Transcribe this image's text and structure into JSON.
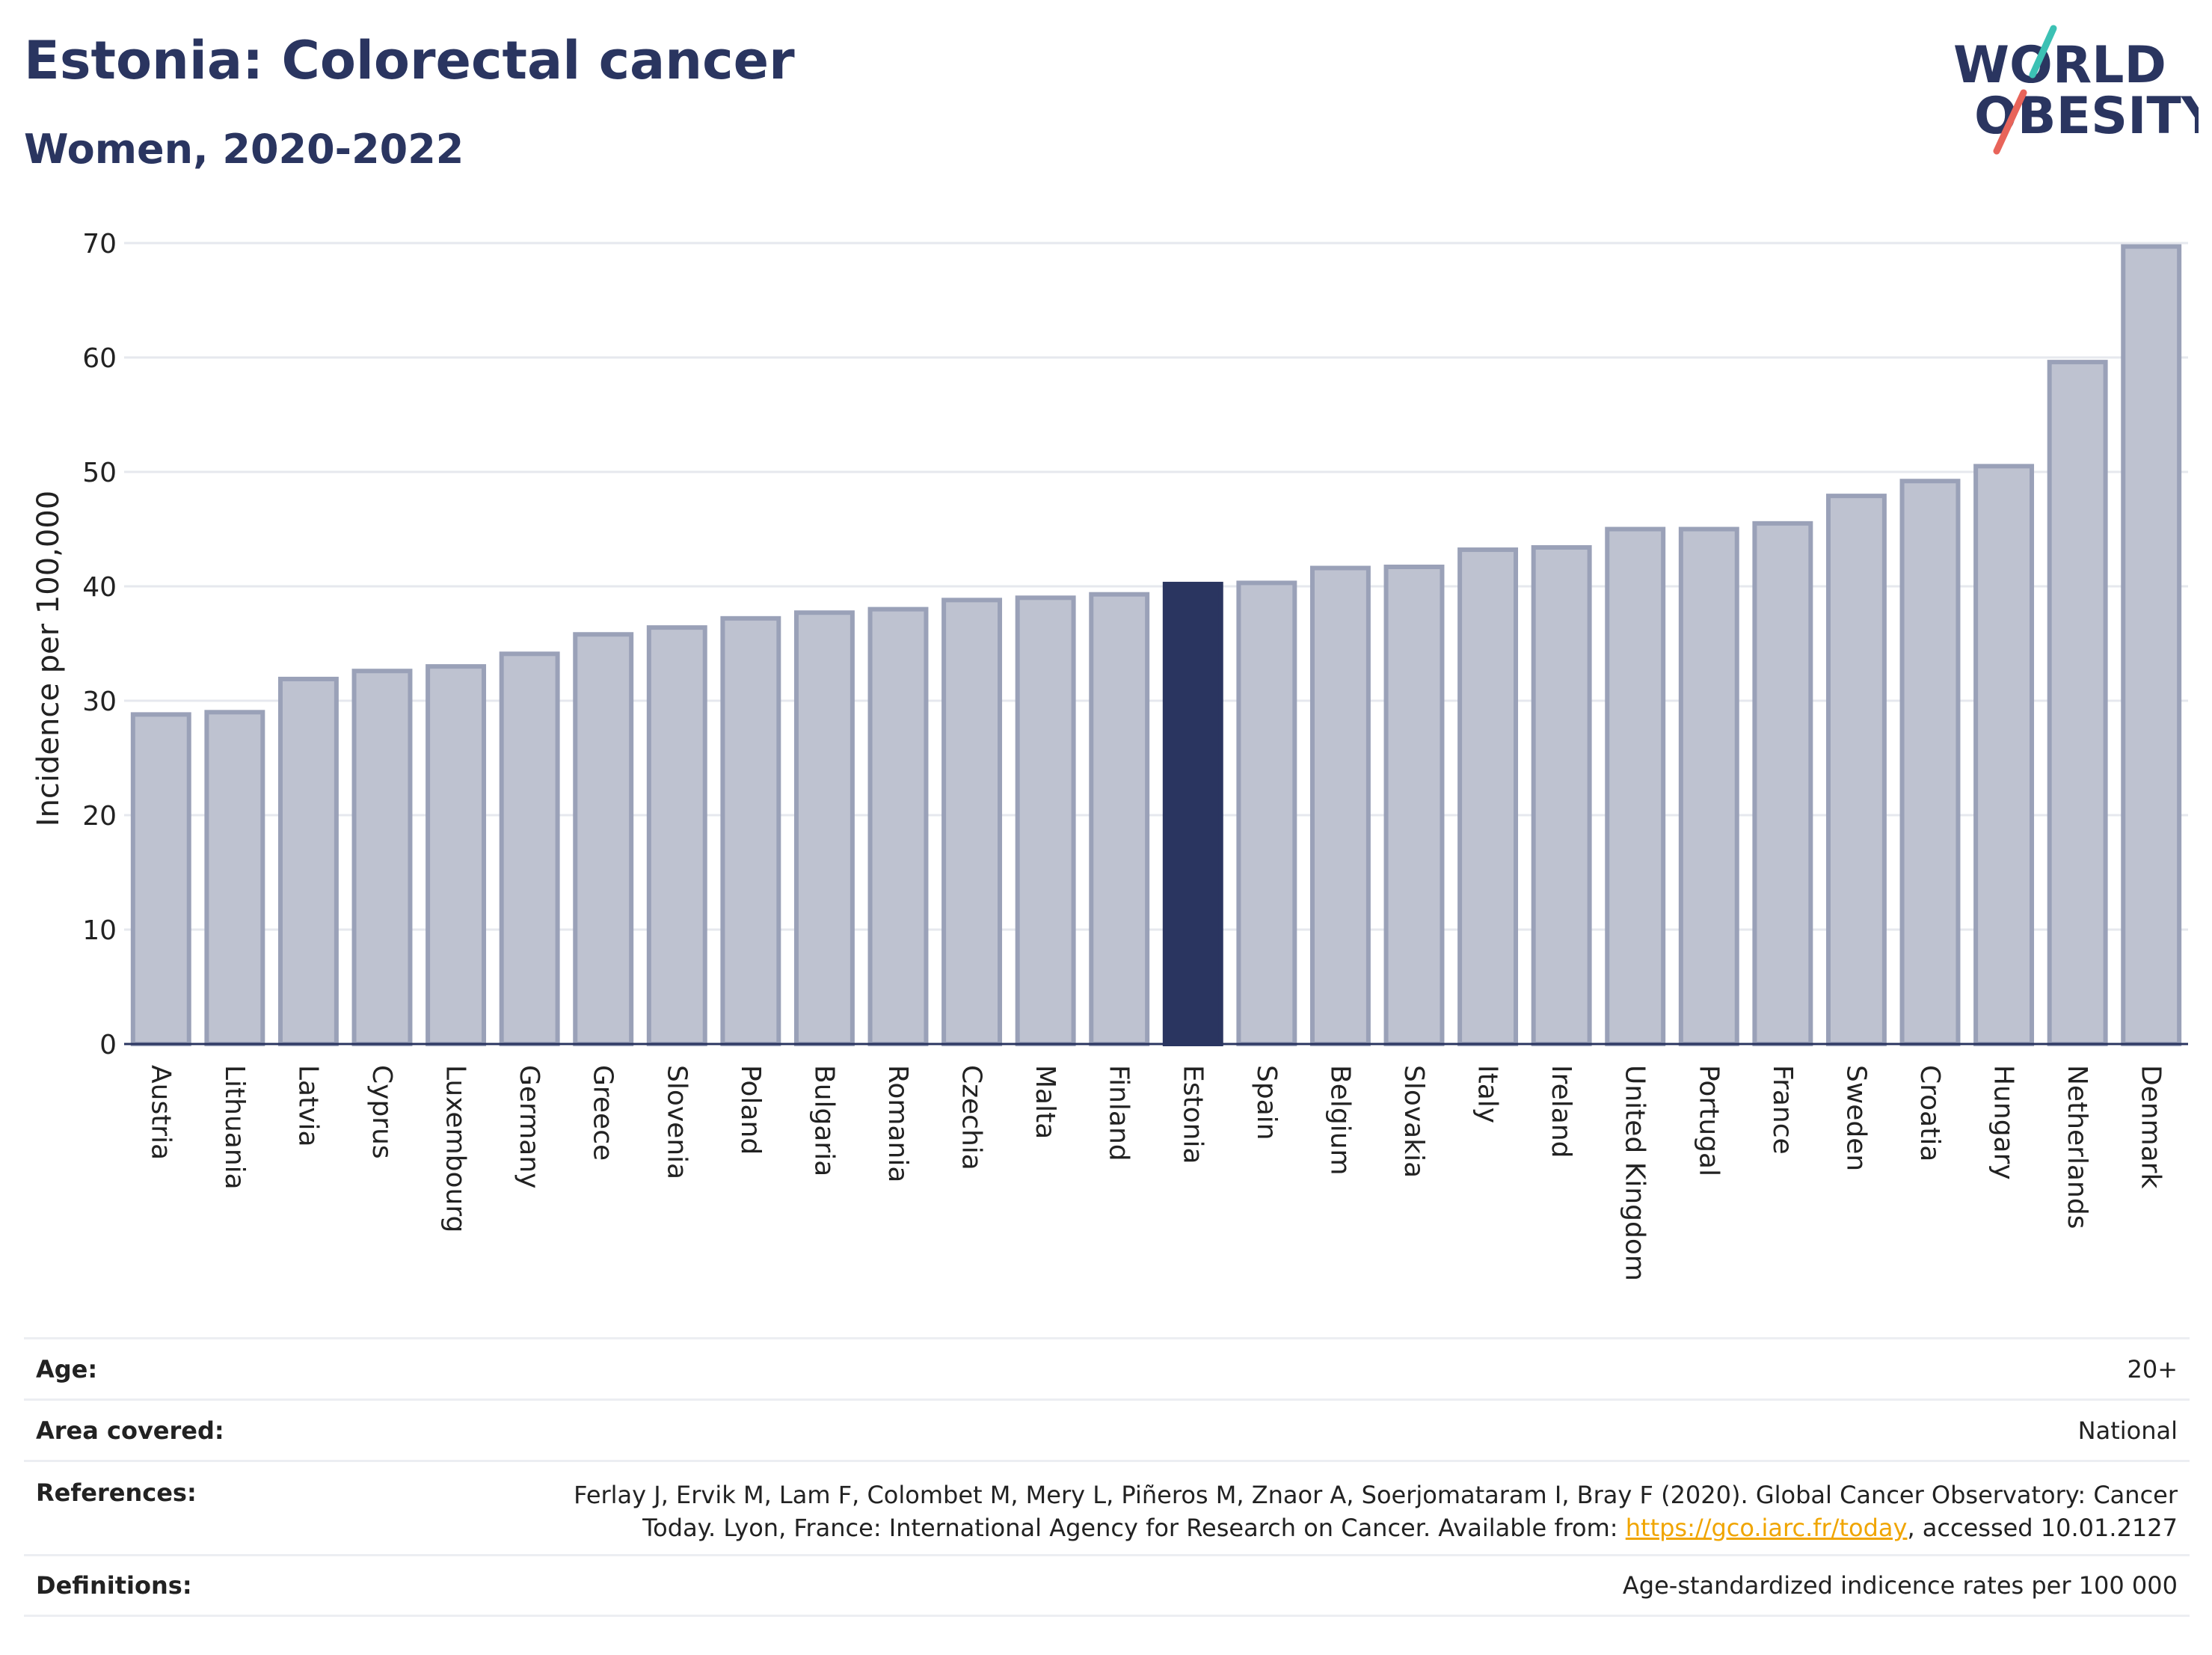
{
  "title": "Estonia: Colorectal cancer",
  "subtitle": "Women, 2020-2022",
  "logo": {
    "line1": "WORLD",
    "line2": "OBESITY",
    "colors": {
      "text": "#2a3560",
      "slash_top": "#3cc1b4",
      "slash_bottom": "#e8645a"
    }
  },
  "colors": {
    "bar_fill": "#bec2d0",
    "bar_stroke": "#9aa1b8",
    "highlight": "#2a3560",
    "grid": "#e6e8ee",
    "axis": "#2a3560"
  },
  "chart_data": {
    "type": "bar",
    "ylabel": "Incidence per 100,000",
    "ylim": [
      0,
      70
    ],
    "yticks": [
      0,
      10,
      20,
      30,
      40,
      50,
      60,
      70
    ],
    "grid": true,
    "highlight": "Estonia",
    "categories": [
      "Austria",
      "Lithuania",
      "Latvia",
      "Cyprus",
      "Luxembourg",
      "Germany",
      "Greece",
      "Slovenia",
      "Poland",
      "Bulgaria",
      "Romania",
      "Czechia",
      "Malta",
      "Finland",
      "Estonia",
      "Spain",
      "Belgium",
      "Slovakia",
      "Italy",
      "Ireland",
      "United Kingdom",
      "Portugal",
      "France",
      "Sweden",
      "Croatia",
      "Hungary",
      "Netherlands",
      "Denmark"
    ],
    "values": [
      28.8,
      29.0,
      31.9,
      32.6,
      33.0,
      34.1,
      35.8,
      36.4,
      37.2,
      37.7,
      38.0,
      38.8,
      39.0,
      39.3,
      40.2,
      40.3,
      41.6,
      41.7,
      43.2,
      43.4,
      45.0,
      45.0,
      45.5,
      47.9,
      49.2,
      50.5,
      59.6,
      69.7
    ]
  },
  "meta": {
    "age_label": "Age:",
    "age_value": "20+",
    "area_label": "Area covered:",
    "area_value": "National",
    "references_label": "References:",
    "references_line1": "Ferlay J, Ervik M, Lam F, Colombet M, Mery L, Piñeros M, Znaor A, Soerjomataram I, Bray F (2020). Global Cancer Observatory: Cancer",
    "references_line2_pre": "Today. Lyon, France: International Agency for Research on Cancer. Available from: ",
    "references_link": "https://gco.iarc.fr/today",
    "references_line2_post": ", accessed 10.01.2127",
    "definitions_label": "Definitions:",
    "definitions_value": "Age-standardized indicence rates per 100 000"
  }
}
